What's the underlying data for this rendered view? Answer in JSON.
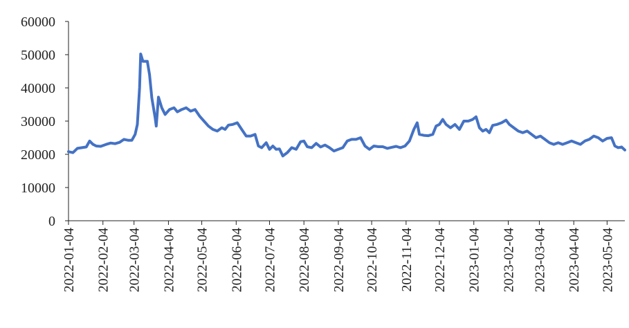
{
  "chart_data": {
    "type": "line",
    "title": "",
    "xlabel": "",
    "ylabel": "",
    "ylim": [
      0,
      60000
    ],
    "yticks": [
      0,
      10000,
      20000,
      30000,
      40000,
      50000,
      60000
    ],
    "xticks": [
      "2022-01-04",
      "2022-02-04",
      "2022-03-04",
      "2022-04-04",
      "2022-05-04",
      "2022-06-04",
      "2022-07-04",
      "2022-08-04",
      "2022-09-04",
      "2022-10-04",
      "2022-11-04",
      "2022-12-04",
      "2023-01-04",
      "2023-02-04",
      "2023-03-04",
      "2023-04-04",
      "2023-05-04"
    ],
    "xrange": [
      "2022-01-04",
      "2023-05-20"
    ],
    "grid": false,
    "legend": "none",
    "line_color": "#4472C4",
    "series": [
      {
        "name": "",
        "points": [
          [
            "2022-01-04",
            20800
          ],
          [
            "2022-01-08",
            20500
          ],
          [
            "2022-01-12",
            21800
          ],
          [
            "2022-01-16",
            22000
          ],
          [
            "2022-01-20",
            22200
          ],
          [
            "2022-01-23",
            24000
          ],
          [
            "2022-01-26",
            23000
          ],
          [
            "2022-01-29",
            22500
          ],
          [
            "2022-02-02",
            22400
          ],
          [
            "2022-02-07",
            23000
          ],
          [
            "2022-02-11",
            23400
          ],
          [
            "2022-02-15",
            23200
          ],
          [
            "2022-02-19",
            23600
          ],
          [
            "2022-02-23",
            24500
          ],
          [
            "2022-02-27",
            24200
          ],
          [
            "2022-03-02",
            24200
          ],
          [
            "2022-03-05",
            26000
          ],
          [
            "2022-03-07",
            29000
          ],
          [
            "2022-03-09",
            40000
          ],
          [
            "2022-03-10",
            50200
          ],
          [
            "2022-03-12",
            48000
          ],
          [
            "2022-03-16",
            48000
          ],
          [
            "2022-03-18",
            44000
          ],
          [
            "2022-03-20",
            37000
          ],
          [
            "2022-03-23",
            31000
          ],
          [
            "2022-03-24",
            28500
          ],
          [
            "2022-03-26",
            37200
          ],
          [
            "2022-03-29",
            34000
          ],
          [
            "2022-04-01",
            32000
          ],
          [
            "2022-04-05",
            33500
          ],
          [
            "2022-04-09",
            34000
          ],
          [
            "2022-04-12",
            32800
          ],
          [
            "2022-04-16",
            33500
          ],
          [
            "2022-04-20",
            34000
          ],
          [
            "2022-04-24",
            33000
          ],
          [
            "2022-04-28",
            33500
          ],
          [
            "2022-05-02",
            31500
          ],
          [
            "2022-05-06",
            30000
          ],
          [
            "2022-05-10",
            28500
          ],
          [
            "2022-05-14",
            27500
          ],
          [
            "2022-05-18",
            27000
          ],
          [
            "2022-05-22",
            28000
          ],
          [
            "2022-05-25",
            27500
          ],
          [
            "2022-05-28",
            28800
          ],
          [
            "2022-06-01",
            29000
          ],
          [
            "2022-06-05",
            29500
          ],
          [
            "2022-06-09",
            27500
          ],
          [
            "2022-06-13",
            25500
          ],
          [
            "2022-06-17",
            25500
          ],
          [
            "2022-06-21",
            26000
          ],
          [
            "2022-06-24",
            22500
          ],
          [
            "2022-06-27",
            22000
          ],
          [
            "2022-07-01",
            23500
          ],
          [
            "2022-07-04",
            21500
          ],
          [
            "2022-07-07",
            22500
          ],
          [
            "2022-07-10",
            21500
          ],
          [
            "2022-07-13",
            21600
          ],
          [
            "2022-07-16",
            19500
          ],
          [
            "2022-07-20",
            20500
          ],
          [
            "2022-07-24",
            22000
          ],
          [
            "2022-07-28",
            21500
          ],
          [
            "2022-08-01",
            23800
          ],
          [
            "2022-08-04",
            24000
          ],
          [
            "2022-08-07",
            22300
          ],
          [
            "2022-08-11",
            22000
          ],
          [
            "2022-08-15",
            23300
          ],
          [
            "2022-08-19",
            22200
          ],
          [
            "2022-08-23",
            22800
          ],
          [
            "2022-08-27",
            22000
          ],
          [
            "2022-08-31",
            21000
          ],
          [
            "2022-09-04",
            21500
          ],
          [
            "2022-09-08",
            22000
          ],
          [
            "2022-09-12",
            24000
          ],
          [
            "2022-09-16",
            24500
          ],
          [
            "2022-09-20",
            24500
          ],
          [
            "2022-09-24",
            25000
          ],
          [
            "2022-09-28",
            22500
          ],
          [
            "2022-10-02",
            21500
          ],
          [
            "2022-10-06",
            22500
          ],
          [
            "2022-10-10",
            22300
          ],
          [
            "2022-10-14",
            22300
          ],
          [
            "2022-10-18",
            21800
          ],
          [
            "2022-10-22",
            22100
          ],
          [
            "2022-10-26",
            22400
          ],
          [
            "2022-10-30",
            22000
          ],
          [
            "2022-11-03",
            22500
          ],
          [
            "2022-11-07",
            24000
          ],
          [
            "2022-11-11",
            27500
          ],
          [
            "2022-11-14",
            29500
          ],
          [
            "2022-11-16",
            26000
          ],
          [
            "2022-11-20",
            25700
          ],
          [
            "2022-11-24",
            25600
          ],
          [
            "2022-11-28",
            26000
          ],
          [
            "2022-12-01",
            28500
          ],
          [
            "2022-12-04",
            29000
          ],
          [
            "2022-12-07",
            30500
          ],
          [
            "2022-12-10",
            29000
          ],
          [
            "2022-12-14",
            28000
          ],
          [
            "2022-12-18",
            29000
          ],
          [
            "2022-12-22",
            27500
          ],
          [
            "2022-12-26",
            30000
          ],
          [
            "2022-12-30",
            30000
          ],
          [
            "2023-01-03",
            30500
          ],
          [
            "2023-01-06",
            31300
          ],
          [
            "2023-01-09",
            28000
          ],
          [
            "2023-01-12",
            27000
          ],
          [
            "2023-01-15",
            27500
          ],
          [
            "2023-01-18",
            26500
          ],
          [
            "2023-01-21",
            28700
          ],
          [
            "2023-01-25",
            29000
          ],
          [
            "2023-01-29",
            29500
          ],
          [
            "2023-02-02",
            30300
          ],
          [
            "2023-02-05",
            29000
          ],
          [
            "2023-02-09",
            28000
          ],
          [
            "2023-02-13",
            27000
          ],
          [
            "2023-02-17",
            26500
          ],
          [
            "2023-02-21",
            27000
          ],
          [
            "2023-02-25",
            26000
          ],
          [
            "2023-03-01",
            25000
          ],
          [
            "2023-03-05",
            25500
          ],
          [
            "2023-03-09",
            24500
          ],
          [
            "2023-03-13",
            23500
          ],
          [
            "2023-03-17",
            23000
          ],
          [
            "2023-03-21",
            23500
          ],
          [
            "2023-03-25",
            23000
          ],
          [
            "2023-03-29",
            23500
          ],
          [
            "2023-04-02",
            24000
          ],
          [
            "2023-04-06",
            23500
          ],
          [
            "2023-04-10",
            23000
          ],
          [
            "2023-04-14",
            24000
          ],
          [
            "2023-04-18",
            24500
          ],
          [
            "2023-04-22",
            25500
          ],
          [
            "2023-04-26",
            25000
          ],
          [
            "2023-04-30",
            24000
          ],
          [
            "2023-05-04",
            24800
          ],
          [
            "2023-05-08",
            25000
          ],
          [
            "2023-05-11",
            22500
          ],
          [
            "2023-05-14",
            22000
          ],
          [
            "2023-05-17",
            22200
          ],
          [
            "2023-05-20",
            21300
          ]
        ]
      }
    ]
  }
}
